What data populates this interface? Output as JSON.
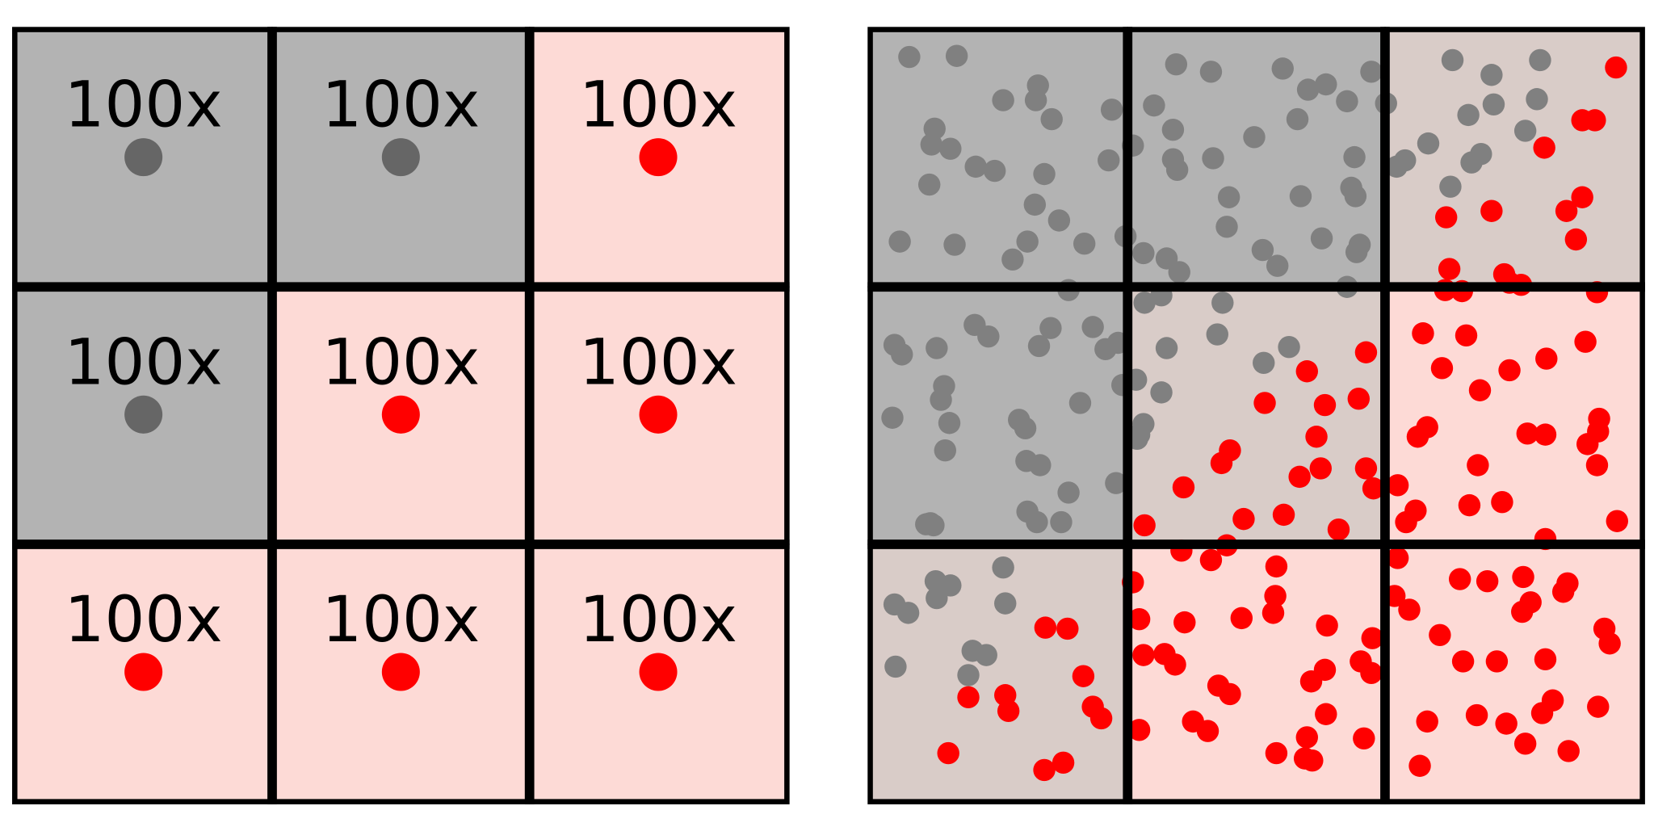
{
  "colors": {
    "gray_cell": "#b3b3b3",
    "pink_cell": "#fddad6",
    "mixed_cell": "#d9ccc8",
    "gray_dot_left": "#666666",
    "gray_dot_right": "#808080",
    "red_dot": "#ff0000",
    "grid_line": "#000000"
  },
  "left_grid": {
    "cells": [
      {
        "label": "100x",
        "fill": "gray",
        "dot": "gray"
      },
      {
        "label": "100x",
        "fill": "gray",
        "dot": "gray"
      },
      {
        "label": "100x",
        "fill": "pink",
        "dot": "red"
      },
      {
        "label": "100x",
        "fill": "gray",
        "dot": "gray"
      },
      {
        "label": "100x",
        "fill": "pink",
        "dot": "red"
      },
      {
        "label": "100x",
        "fill": "pink",
        "dot": "red"
      },
      {
        "label": "100x",
        "fill": "pink",
        "dot": "red"
      },
      {
        "label": "100x",
        "fill": "pink",
        "dot": "red"
      },
      {
        "label": "100x",
        "fill": "pink",
        "dot": "red"
      }
    ]
  },
  "right_grid": {
    "cells": [
      {
        "fill": "gray"
      },
      {
        "fill": "gray"
      },
      {
        "fill": "mixed"
      },
      {
        "fill": "gray"
      },
      {
        "fill": "mixed"
      },
      {
        "fill": "pink"
      },
      {
        "fill": "mixed"
      },
      {
        "fill": "pink"
      },
      {
        "fill": "pink"
      }
    ]
  }
}
